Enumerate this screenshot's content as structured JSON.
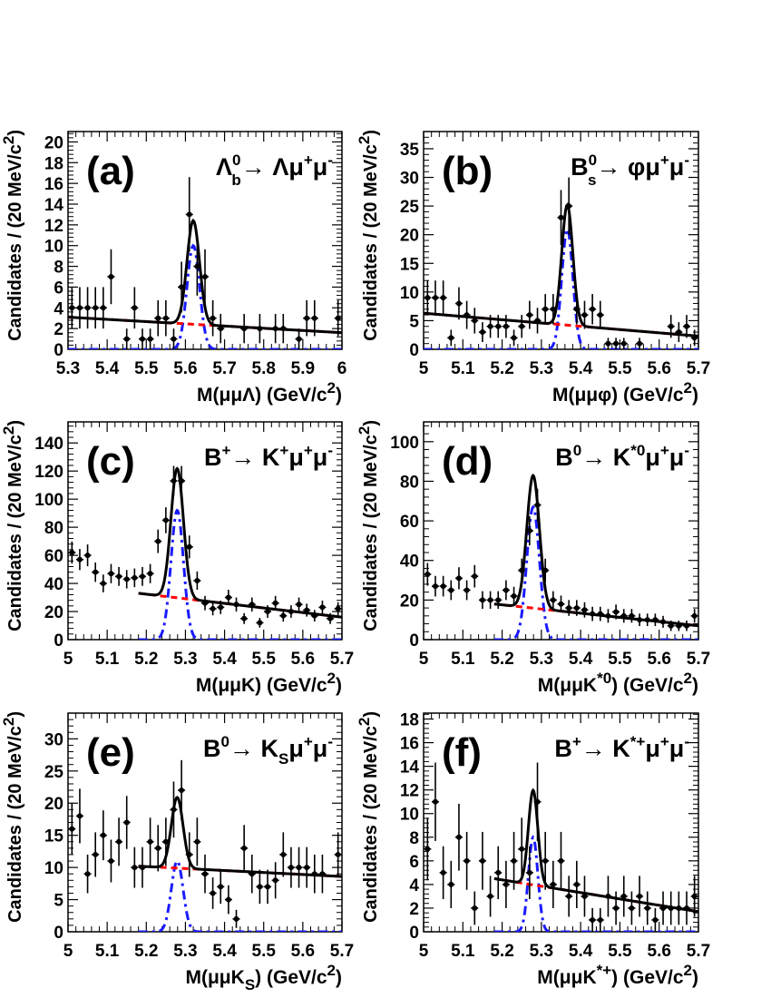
{
  "chart_data": [
    {
      "type": "scatter",
      "panel_label": "(a)",
      "decay": {
        "base": "Λ",
        "sub": "b",
        "sup": "0",
        "arrow": "→",
        "rest": "Λμ",
        "sup2": "+",
        "tail": "μ",
        "sup3": "-"
      },
      "xlabel": {
        "main": "M(μμΛ) (GeV/c",
        "sup": "2",
        "close": ")"
      },
      "ylabel": "Candidates / (20 MeV/c",
      "ylabel_sup": "2",
      "ylabel_close": ")",
      "xlim": [
        5.3,
        6.0
      ],
      "ylim": [
        0,
        21
      ],
      "xticks": [
        "5.3",
        "5.4",
        "5.5",
        "5.6",
        "5.7",
        "5.8",
        "5.9",
        "6"
      ],
      "yticks": [
        "0",
        "2",
        "4",
        "6",
        "8",
        "10",
        "12",
        "14",
        "16",
        "18",
        "20"
      ],
      "points": [
        [
          5.31,
          4
        ],
        [
          5.33,
          4
        ],
        [
          5.35,
          4
        ],
        [
          5.37,
          4
        ],
        [
          5.39,
          4
        ],
        [
          5.41,
          7
        ],
        [
          5.45,
          1
        ],
        [
          5.47,
          4
        ],
        [
          5.49,
          1
        ],
        [
          5.51,
          1
        ],
        [
          5.53,
          3
        ],
        [
          5.55,
          3
        ],
        [
          5.57,
          1
        ],
        [
          5.59,
          6
        ],
        [
          5.61,
          13
        ],
        [
          5.63,
          8
        ],
        [
          5.65,
          7
        ],
        [
          5.67,
          3
        ],
        [
          5.69,
          2
        ],
        [
          5.75,
          2
        ],
        [
          5.79,
          2
        ],
        [
          5.83,
          2
        ],
        [
          5.85,
          2
        ],
        [
          5.89,
          1
        ],
        [
          5.91,
          3
        ],
        [
          5.93,
          3
        ],
        [
          5.99,
          3
        ]
      ],
      "signal": {
        "mean": 5.62,
        "sigma": 0.016,
        "amp": 10.0
      },
      "background": [
        [
          5.3,
          3.1
        ],
        [
          6.0,
          1.6
        ]
      ],
      "fit_range": [
        5.3,
        6.0
      ]
    },
    {
      "type": "scatter",
      "panel_label": "(b)",
      "decay": {
        "base": "B",
        "sub": "s",
        "sup": "0",
        "arrow": "→",
        "rest": "φμ",
        "sup2": "+",
        "tail": "μ",
        "sup3": "-"
      },
      "xlabel": {
        "main": "M(μμφ) (GeV/c",
        "sup": "2",
        "close": ")"
      },
      "ylabel": "Candidates / (20 MeV/c",
      "ylabel_sup": "2",
      "ylabel_close": ")",
      "xlim": [
        5.0,
        5.7
      ],
      "ylim": [
        0,
        38
      ],
      "xticks": [
        "5",
        "5.1",
        "5.2",
        "5.3",
        "5.4",
        "5.5",
        "5.6",
        "5.7"
      ],
      "yticks": [
        "0",
        "5",
        "10",
        "15",
        "20",
        "25",
        "30",
        "35"
      ],
      "points": [
        [
          5.01,
          9
        ],
        [
          5.03,
          9
        ],
        [
          5.05,
          9
        ],
        [
          5.07,
          2
        ],
        [
          5.09,
          8
        ],
        [
          5.11,
          6
        ],
        [
          5.13,
          5
        ],
        [
          5.15,
          3
        ],
        [
          5.17,
          4
        ],
        [
          5.19,
          4
        ],
        [
          5.21,
          4
        ],
        [
          5.23,
          2
        ],
        [
          5.25,
          4
        ],
        [
          5.27,
          6
        ],
        [
          5.29,
          5
        ],
        [
          5.31,
          7
        ],
        [
          5.33,
          7
        ],
        [
          5.35,
          23
        ],
        [
          5.37,
          25
        ],
        [
          5.39,
          7
        ],
        [
          5.41,
          6
        ],
        [
          5.43,
          7
        ],
        [
          5.45,
          6
        ],
        [
          5.47,
          1
        ],
        [
          5.49,
          1
        ],
        [
          5.51,
          1
        ],
        [
          5.55,
          1
        ],
        [
          5.63,
          4
        ],
        [
          5.65,
          3
        ],
        [
          5.67,
          4
        ],
        [
          5.69,
          2
        ]
      ],
      "signal": {
        "mean": 5.366,
        "sigma": 0.014,
        "amp": 21.0
      },
      "background": [
        [
          5.0,
          6.3
        ],
        [
          5.7,
          2.3
        ]
      ],
      "fit_range": [
        5.0,
        5.7
      ]
    },
    {
      "type": "scatter",
      "panel_label": "(c)",
      "decay": {
        "base": "B",
        "sub": "",
        "sup": "+",
        "arrow": "→",
        "rest": "K",
        "restsup": "+",
        "rest2": "μ",
        "sup2": "+",
        "tail": "μ",
        "sup3": "-"
      },
      "xlabel": {
        "main": "M(μμK) (GeV/c",
        "sup": "2",
        "close": ")"
      },
      "ylabel": "Candidates / (20 MeV/c",
      "ylabel_sup": "2",
      "ylabel_close": ")",
      "xlim": [
        5.0,
        5.7
      ],
      "ylim": [
        0,
        155
      ],
      "xticks": [
        "5",
        "5.1",
        "5.2",
        "5.3",
        "5.4",
        "5.5",
        "5.6",
        "5.7"
      ],
      "yticks": [
        "0",
        "20",
        "40",
        "60",
        "80",
        "100",
        "120",
        "140"
      ],
      "points": [
        [
          5.01,
          62
        ],
        [
          5.03,
          57
        ],
        [
          5.05,
          60
        ],
        [
          5.07,
          48
        ],
        [
          5.09,
          40
        ],
        [
          5.11,
          47
        ],
        [
          5.13,
          45
        ],
        [
          5.15,
          43
        ],
        [
          5.17,
          44
        ],
        [
          5.19,
          45
        ],
        [
          5.21,
          47
        ],
        [
          5.23,
          70
        ],
        [
          5.25,
          85
        ],
        [
          5.27,
          113
        ],
        [
          5.29,
          113
        ],
        [
          5.31,
          66
        ],
        [
          5.33,
          42
        ],
        [
          5.35,
          26
        ],
        [
          5.37,
          22
        ],
        [
          5.39,
          23
        ],
        [
          5.41,
          30
        ],
        [
          5.43,
          25
        ],
        [
          5.45,
          15
        ],
        [
          5.47,
          25
        ],
        [
          5.49,
          12
        ],
        [
          5.51,
          20
        ],
        [
          5.53,
          26
        ],
        [
          5.55,
          17
        ],
        [
          5.57,
          20
        ],
        [
          5.59,
          25
        ],
        [
          5.61,
          21
        ],
        [
          5.63,
          17
        ],
        [
          5.65,
          23
        ],
        [
          5.67,
          15
        ],
        [
          5.69,
          22
        ]
      ],
      "signal": {
        "mean": 5.279,
        "sigma": 0.016,
        "amp": 92.0
      },
      "background": [
        [
          5.18,
          33.0
        ],
        [
          5.7,
          16.0
        ]
      ],
      "fit_range": [
        5.18,
        5.7
      ]
    },
    {
      "type": "scatter",
      "panel_label": "(d)",
      "decay": {
        "base": "B",
        "sub": "",
        "sup": "0",
        "arrow": "→",
        "rest": "K",
        "restsup": "*0",
        "rest2": "μ",
        "sup2": "+",
        "tail": "μ",
        "sup3": "-"
      },
      "xlabel": {
        "main": "M(μμK",
        "mainsup": "*0",
        "main2": ") (GeV/c",
        "sup": "2",
        "close": ")"
      },
      "ylabel": "Candidates / (20 MeV/c",
      "ylabel_sup": "2",
      "ylabel_close": ")",
      "xlim": [
        5.0,
        5.7
      ],
      "ylim": [
        0,
        110
      ],
      "xticks": [
        "5",
        "5.1",
        "5.2",
        "5.3",
        "5.4",
        "5.5",
        "5.6",
        "5.7"
      ],
      "yticks": [
        "0",
        "20",
        "40",
        "60",
        "80",
        "100"
      ],
      "points": [
        [
          5.01,
          33
        ],
        [
          5.03,
          27
        ],
        [
          5.05,
          27
        ],
        [
          5.07,
          25
        ],
        [
          5.09,
          31
        ],
        [
          5.11,
          25
        ],
        [
          5.13,
          32
        ],
        [
          5.15,
          20
        ],
        [
          5.17,
          20
        ],
        [
          5.19,
          20
        ],
        [
          5.21,
          25
        ],
        [
          5.23,
          22
        ],
        [
          5.25,
          35
        ],
        [
          5.27,
          55
        ],
        [
          5.29,
          68
        ],
        [
          5.31,
          35
        ],
        [
          5.33,
          20
        ],
        [
          5.35,
          18
        ],
        [
          5.37,
          16
        ],
        [
          5.39,
          16
        ],
        [
          5.41,
          15
        ],
        [
          5.43,
          13
        ],
        [
          5.45,
          13
        ],
        [
          5.47,
          12
        ],
        [
          5.49,
          14
        ],
        [
          5.51,
          12
        ],
        [
          5.53,
          12
        ],
        [
          5.55,
          10
        ],
        [
          5.57,
          10
        ],
        [
          5.59,
          10
        ],
        [
          5.61,
          9
        ],
        [
          5.63,
          7
        ],
        [
          5.65,
          7
        ],
        [
          5.67,
          7
        ],
        [
          5.69,
          12
        ]
      ],
      "signal": {
        "mean": 5.279,
        "sigma": 0.016,
        "amp": 67.0
      },
      "background": [
        [
          5.18,
          18.0
        ],
        [
          5.7,
          7.0
        ]
      ],
      "fit_range": [
        5.18,
        5.7
      ]
    },
    {
      "type": "scatter",
      "panel_label": "(e)",
      "decay": {
        "base": "B",
        "sub": "",
        "sup": "0",
        "arrow": "→",
        "rest": "K",
        "restsub": "S",
        "rest2": "μ",
        "sup2": "+",
        "tail": "μ",
        "sup3": "-"
      },
      "xlabel": {
        "main": "M(μμK",
        "mainsub": "S",
        "main2": ") (GeV/c",
        "sup": "2",
        "close": ")"
      },
      "ylabel": "Candidates / (20 MeV/c",
      "ylabel_sup": "2",
      "ylabel_close": ")",
      "xlim": [
        5.0,
        5.7
      ],
      "ylim": [
        0,
        34
      ],
      "xticks": [
        "5",
        "5.1",
        "5.2",
        "5.3",
        "5.4",
        "5.5",
        "5.6",
        "5.7"
      ],
      "yticks": [
        "0",
        "5",
        "10",
        "15",
        "20",
        "25",
        "30"
      ],
      "points": [
        [
          5.01,
          16
        ],
        [
          5.03,
          18
        ],
        [
          5.05,
          9
        ],
        [
          5.07,
          12
        ],
        [
          5.09,
          15
        ],
        [
          5.11,
          11
        ],
        [
          5.13,
          14
        ],
        [
          5.15,
          17
        ],
        [
          5.17,
          10
        ],
        [
          5.19,
          10
        ],
        [
          5.21,
          14
        ],
        [
          5.23,
          13
        ],
        [
          5.25,
          14
        ],
        [
          5.27,
          19
        ],
        [
          5.29,
          22
        ],
        [
          5.31,
          12
        ],
        [
          5.33,
          14
        ],
        [
          5.35,
          9
        ],
        [
          5.37,
          6
        ],
        [
          5.39,
          7
        ],
        [
          5.41,
          5
        ],
        [
          5.43,
          2
        ],
        [
          5.45,
          13
        ],
        [
          5.47,
          9
        ],
        [
          5.49,
          7
        ],
        [
          5.51,
          7
        ],
        [
          5.53,
          8
        ],
        [
          5.55,
          12
        ],
        [
          5.57,
          10
        ],
        [
          5.59,
          10
        ],
        [
          5.61,
          10
        ],
        [
          5.63,
          9
        ],
        [
          5.65,
          9
        ],
        [
          5.69,
          12
        ]
      ],
      "signal": {
        "mean": 5.279,
        "sigma": 0.015,
        "amp": 11.0
      },
      "background": [
        [
          5.18,
          10.2
        ],
        [
          5.7,
          8.6
        ]
      ],
      "fit_range": [
        5.18,
        5.7
      ]
    },
    {
      "type": "scatter",
      "panel_label": "(f)",
      "decay": {
        "base": "B",
        "sub": "",
        "sup": "+",
        "arrow": "→",
        "rest": "K",
        "restsup": "*+",
        "rest2": "μ",
        "sup2": "+",
        "tail": "μ",
        "sup3": "-"
      },
      "xlabel": {
        "main": "M(μμK",
        "mainsup": "*+",
        "main2": ") (GeV/c",
        "sup": "2",
        "close": ")"
      },
      "ylabel": "Candidates / (20 MeV/c",
      "ylabel_sup": "2",
      "ylabel_close": ")",
      "xlim": [
        5.0,
        5.7
      ],
      "ylim": [
        0,
        18.5
      ],
      "xticks": [
        "5",
        "5.1",
        "5.2",
        "5.3",
        "5.4",
        "5.5",
        "5.6",
        "5.7"
      ],
      "yticks": [
        "0",
        "2",
        "4",
        "6",
        "8",
        "10",
        "12",
        "14",
        "16",
        "18"
      ],
      "points": [
        [
          5.01,
          7
        ],
        [
          5.03,
          11
        ],
        [
          5.05,
          5
        ],
        [
          5.07,
          4
        ],
        [
          5.09,
          8
        ],
        [
          5.11,
          6
        ],
        [
          5.13,
          2
        ],
        [
          5.15,
          6
        ],
        [
          5.17,
          3
        ],
        [
          5.19,
          5
        ],
        [
          5.21,
          4
        ],
        [
          5.23,
          6
        ],
        [
          5.25,
          7
        ],
        [
          5.27,
          5
        ],
        [
          5.29,
          11
        ],
        [
          5.31,
          6
        ],
        [
          5.33,
          4
        ],
        [
          5.35,
          6
        ],
        [
          5.37,
          3
        ],
        [
          5.39,
          4
        ],
        [
          5.41,
          3
        ],
        [
          5.43,
          1
        ],
        [
          5.45,
          1
        ],
        [
          5.47,
          3
        ],
        [
          5.49,
          2
        ],
        [
          5.51,
          3
        ],
        [
          5.53,
          2
        ],
        [
          5.55,
          3
        ],
        [
          5.57,
          2
        ],
        [
          5.59,
          1
        ],
        [
          5.61,
          2
        ],
        [
          5.63,
          2
        ],
        [
          5.65,
          2
        ],
        [
          5.67,
          2
        ],
        [
          5.69,
          3
        ]
      ],
      "signal": {
        "mean": 5.279,
        "sigma": 0.012,
        "amp": 8.0
      },
      "background": [
        [
          5.18,
          4.5
        ],
        [
          5.7,
          1.7
        ]
      ],
      "fit_range": [
        5.18,
        5.7
      ]
    }
  ]
}
